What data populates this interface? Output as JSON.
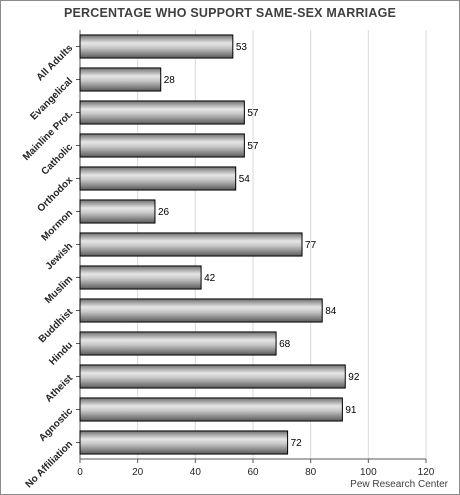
{
  "chart_data": {
    "type": "bar",
    "orientation": "horizontal",
    "title": "PERCENTAGE WHO SUPPORT SAME-SEX MARRIAGE",
    "categories": [
      "All Adults",
      "Evangelical",
      "Mainline Prot.",
      "Catholic",
      "Orthodox",
      "Mormon",
      "Jewish",
      "Muslim",
      "Buddhist",
      "Hindu",
      "Atheist",
      "Agnostic",
      "No Affiliation"
    ],
    "values": [
      53,
      28,
      57,
      57,
      54,
      26,
      77,
      42,
      84,
      68,
      92,
      91,
      72
    ],
    "data_labels": [
      "53",
      "28",
      "57",
      "57",
      "54",
      "26",
      "77",
      "42",
      "84",
      "68",
      "92",
      "91",
      "72"
    ],
    "xlim": [
      0,
      120
    ],
    "x_ticks": [
      0,
      20,
      40,
      60,
      80,
      100,
      120
    ],
    "x_tick_labels": [
      "0",
      "20",
      "40",
      "60",
      "80",
      "100",
      "120"
    ],
    "grid": "vertical",
    "bar_color": "#a6a6a6",
    "bar_edge_color": "#000000",
    "source": "Pew Research Center"
  }
}
